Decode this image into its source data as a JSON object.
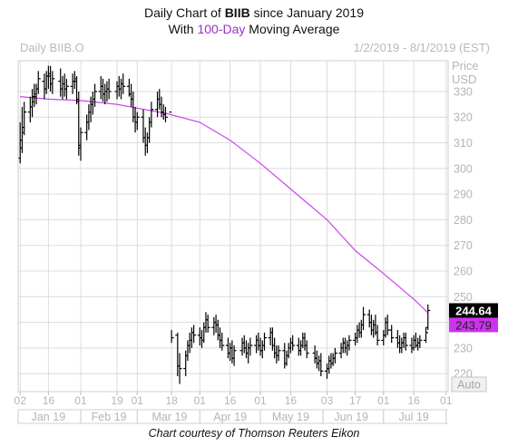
{
  "title": {
    "prefix": "Daily Chart of ",
    "ticker": "BIIB",
    "suffix": " since January 2019",
    "line2_pre": "With ",
    "line2_ma": "100-Day",
    "line2_post": " Moving Average"
  },
  "header": {
    "symbol": "Daily BIIB.O",
    "date_range": "1/2/2019 - 8/1/2019 (EST)"
  },
  "credit": "Chart courtesy of Thomson Reuters Eikon",
  "colors": {
    "price_bars": "#000000",
    "moving_average": "#cc44ee",
    "grid": "#dcdcdc",
    "axis_text": "#b5b5b5",
    "last_price_tag": "#000000",
    "ma_tag": "#cc33ee"
  },
  "chart_data": {
    "type": "line",
    "title": "Daily Chart of BIIB since January 2019",
    "subtitle": "With 100-Day Moving Average",
    "ylabel": "Price USD",
    "ylabel_lines": [
      "Price",
      "USD"
    ],
    "scale_button": "Auto",
    "ylim": [
      213,
      342
    ],
    "yticks": [
      220,
      230,
      240,
      250,
      260,
      270,
      280,
      290,
      300,
      310,
      320,
      330
    ],
    "xlim": [
      "2019-01-01",
      "2019-08-02"
    ],
    "grid": true,
    "x_ticks": [
      {
        "date": "2019-01-02",
        "label": "02"
      },
      {
        "date": "2019-01-16",
        "label": "16"
      },
      {
        "date": "2019-02-01",
        "label": "01"
      },
      {
        "date": "2019-02-19",
        "label": "19"
      },
      {
        "date": "2019-03-01",
        "label": "01"
      },
      {
        "date": "2019-03-18",
        "label": "18"
      },
      {
        "date": "2019-04-01",
        "label": "01"
      },
      {
        "date": "2019-04-16",
        "label": "16"
      },
      {
        "date": "2019-05-01",
        "label": "01"
      },
      {
        "date": "2019-05-16",
        "label": "16"
      },
      {
        "date": "2019-06-03",
        "label": "03"
      },
      {
        "date": "2019-06-17",
        "label": "17"
      },
      {
        "date": "2019-07-01",
        "label": "01"
      },
      {
        "date": "2019-07-16",
        "label": "16"
      },
      {
        "date": "2019-08-01",
        "label": "01"
      }
    ],
    "months": [
      {
        "label": "Jan 19",
        "center": "2019-01-16"
      },
      {
        "label": "Feb 19",
        "center": "2019-02-15"
      },
      {
        "label": "Mar 19",
        "center": "2019-03-17"
      },
      {
        "label": "Apr 19",
        "center": "2019-04-16"
      },
      {
        "label": "May 19",
        "center": "2019-05-16"
      },
      {
        "label": "Jun 19",
        "center": "2019-06-15"
      },
      {
        "label": "Jul 19",
        "center": "2019-07-16"
      }
    ],
    "price_series": {
      "type": "ohlc",
      "points": [
        [
          "2019-01-02",
          304,
          318,
          302,
          308
        ],
        [
          "2019-01-03",
          311,
          324,
          306,
          314
        ],
        [
          "2019-01-04",
          316,
          326,
          313,
          322
        ],
        [
          "2019-01-07",
          322,
          328,
          318,
          324
        ],
        [
          "2019-01-08",
          324,
          331,
          320,
          328
        ],
        [
          "2019-01-09",
          326,
          333,
          324,
          329
        ],
        [
          "2019-01-10",
          328,
          333,
          325,
          331
        ],
        [
          "2019-01-11",
          331,
          338,
          329,
          335
        ],
        [
          "2019-01-14",
          334,
          337,
          327,
          331
        ],
        [
          "2019-01-15",
          331,
          338,
          329,
          336
        ],
        [
          "2019-01-16",
          336,
          340,
          331,
          337
        ],
        [
          "2019-01-17",
          336,
          340,
          330,
          333
        ],
        [
          "2019-01-18",
          333,
          338,
          329,
          335
        ],
        [
          "2019-01-22",
          334,
          339,
          328,
          331
        ],
        [
          "2019-01-23",
          331,
          336,
          327,
          333
        ],
        [
          "2019-01-24",
          333,
          337,
          328,
          331
        ],
        [
          "2019-01-25",
          331,
          335,
          327,
          332
        ],
        [
          "2019-01-28",
          332,
          337,
          329,
          334
        ],
        [
          "2019-01-29",
          334,
          338,
          331,
          335
        ],
        [
          "2019-01-30",
          334,
          336,
          325,
          327
        ],
        [
          "2019-01-31",
          326,
          330,
          305,
          309
        ],
        [
          "2019-02-01",
          308,
          316,
          303,
          314
        ],
        [
          "2019-02-04",
          314,
          321,
          311,
          318
        ],
        [
          "2019-02-05",
          318,
          325,
          315,
          322
        ],
        [
          "2019-02-06",
          322,
          328,
          318,
          325
        ],
        [
          "2019-02-07",
          325,
          330,
          321,
          327
        ],
        [
          "2019-02-08",
          327,
          333,
          324,
          330
        ],
        [
          "2019-02-11",
          330,
          336,
          327,
          332
        ],
        [
          "2019-02-12",
          332,
          335,
          326,
          329
        ],
        [
          "2019-02-13",
          329,
          333,
          325,
          330
        ],
        [
          "2019-02-14",
          330,
          334,
          326,
          331
        ],
        [
          "2019-02-15",
          331,
          335,
          327,
          330
        ],
        [
          "2019-02-19",
          330,
          334,
          327,
          332
        ],
        [
          "2019-02-20",
          332,
          336,
          328,
          331
        ],
        [
          "2019-02-21",
          331,
          335,
          327,
          333
        ],
        [
          "2019-02-22",
          333,
          337,
          329,
          332
        ],
        [
          "2019-02-25",
          332,
          335,
          328,
          329
        ],
        [
          "2019-02-26",
          329,
          333,
          324,
          327
        ],
        [
          "2019-02-27",
          327,
          330,
          318,
          320
        ],
        [
          "2019-02-28",
          320,
          324,
          314,
          318
        ],
        [
          "2019-03-01",
          318,
          322,
          315,
          320
        ],
        [
          "2019-03-04",
          320,
          323,
          310,
          312
        ],
        [
          "2019-03-05",
          312,
          316,
          305,
          309
        ],
        [
          "2019-03-06",
          309,
          314,
          306,
          312
        ],
        [
          "2019-03-07",
          312,
          320,
          310,
          318
        ],
        [
          "2019-03-08",
          318,
          326,
          316,
          323
        ],
        [
          "2019-03-11",
          323,
          330,
          320,
          327
        ],
        [
          "2019-03-12",
          327,
          331,
          323,
          325
        ],
        [
          "2019-03-13",
          325,
          328,
          320,
          322
        ],
        [
          "2019-03-14",
          322,
          325,
          319,
          321
        ],
        [
          "2019-03-15",
          321,
          324,
          318,
          320
        ],
        [
          "2019-03-18",
          322,
          237,
          232,
          234
        ],
        [
          "2019-03-21",
          235,
          236,
          219,
          223
        ],
        [
          "2019-03-22",
          223,
          228,
          216,
          222
        ],
        [
          "2019-03-25",
          222,
          229,
          219,
          227
        ],
        [
          "2019-03-26",
          227,
          233,
          225,
          231
        ],
        [
          "2019-03-27",
          231,
          236,
          228,
          233
        ],
        [
          "2019-03-28",
          233,
          238,
          230,
          236
        ],
        [
          "2019-03-29",
          236,
          239,
          232,
          235
        ],
        [
          "2019-04-01",
          235,
          238,
          231,
          234
        ],
        [
          "2019-04-02",
          234,
          237,
          230,
          233
        ],
        [
          "2019-04-03",
          233,
          240,
          232,
          238
        ],
        [
          "2019-04-04",
          238,
          244,
          236,
          241
        ],
        [
          "2019-04-05",
          241,
          243,
          236,
          238
        ],
        [
          "2019-04-08",
          238,
          242,
          235,
          240
        ],
        [
          "2019-04-09",
          240,
          243,
          236,
          239
        ],
        [
          "2019-04-10",
          239,
          241,
          233,
          235
        ],
        [
          "2019-04-11",
          235,
          238,
          230,
          233
        ],
        [
          "2019-04-12",
          233,
          236,
          229,
          231
        ],
        [
          "2019-04-15",
          231,
          234,
          226,
          228
        ],
        [
          "2019-04-16",
          228,
          232,
          225,
          230
        ],
        [
          "2019-04-17",
          230,
          233,
          224,
          226
        ],
        [
          "2019-04-18",
          226,
          231,
          223,
          229
        ],
        [
          "2019-04-22",
          229,
          234,
          227,
          232
        ],
        [
          "2019-04-23",
          232,
          235,
          228,
          230
        ],
        [
          "2019-04-24",
          230,
          233,
          226,
          228
        ],
        [
          "2019-04-25",
          228,
          232,
          224,
          230
        ],
        [
          "2019-04-26",
          230,
          234,
          227,
          231
        ],
        [
          "2019-04-29",
          231,
          235,
          228,
          233
        ],
        [
          "2019-04-30",
          233,
          236,
          229,
          231
        ],
        [
          "2019-05-01",
          231,
          234,
          227,
          229
        ],
        [
          "2019-05-02",
          229,
          233,
          226,
          231
        ],
        [
          "2019-05-03",
          231,
          236,
          229,
          234
        ],
        [
          "2019-05-06",
          234,
          238,
          231,
          236
        ],
        [
          "2019-05-07",
          236,
          238,
          229,
          231
        ],
        [
          "2019-05-08",
          231,
          234,
          226,
          228
        ],
        [
          "2019-05-09",
          228,
          231,
          224,
          227
        ],
        [
          "2019-05-10",
          227,
          231,
          225,
          229
        ],
        [
          "2019-05-13",
          229,
          232,
          222,
          224
        ],
        [
          "2019-05-14",
          224,
          229,
          223,
          227
        ],
        [
          "2019-05-15",
          227,
          232,
          226,
          230
        ],
        [
          "2019-05-16",
          230,
          234,
          228,
          232
        ],
        [
          "2019-05-17",
          232,
          235,
          229,
          231
        ],
        [
          "2019-05-20",
          231,
          234,
          227,
          229
        ],
        [
          "2019-05-21",
          229,
          233,
          227,
          231
        ],
        [
          "2019-05-22",
          231,
          236,
          230,
          234
        ],
        [
          "2019-05-23",
          234,
          236,
          229,
          231
        ],
        [
          "2019-05-24",
          231,
          233,
          226,
          228
        ],
        [
          "2019-05-28",
          228,
          231,
          224,
          226
        ],
        [
          "2019-05-29",
          226,
          229,
          222,
          224
        ],
        [
          "2019-05-30",
          224,
          227,
          221,
          225
        ],
        [
          "2019-05-31",
          225,
          228,
          219,
          221
        ],
        [
          "2019-06-03",
          221,
          224,
          218,
          222
        ],
        [
          "2019-06-04",
          222,
          227,
          220,
          225
        ],
        [
          "2019-06-05",
          225,
          228,
          222,
          224
        ],
        [
          "2019-06-06",
          224,
          228,
          223,
          226
        ],
        [
          "2019-06-07",
          226,
          230,
          224,
          228
        ],
        [
          "2019-06-10",
          228,
          232,
          226,
          230
        ],
        [
          "2019-06-11",
          230,
          234,
          228,
          232
        ],
        [
          "2019-06-12",
          232,
          234,
          228,
          230
        ],
        [
          "2019-06-13",
          230,
          233,
          227,
          231
        ],
        [
          "2019-06-14",
          231,
          235,
          229,
          233
        ],
        [
          "2019-06-17",
          233,
          236,
          231,
          234
        ],
        [
          "2019-06-18",
          234,
          239,
          232,
          237
        ],
        [
          "2019-06-19",
          237,
          240,
          234,
          236
        ],
        [
          "2019-06-20",
          236,
          241,
          234,
          239
        ],
        [
          "2019-06-21",
          239,
          246,
          237,
          243
        ],
        [
          "2019-06-24",
          243,
          245,
          238,
          240
        ],
        [
          "2019-06-25",
          240,
          243,
          235,
          237
        ],
        [
          "2019-06-26",
          237,
          241,
          234,
          239
        ],
        [
          "2019-06-27",
          239,
          243,
          235,
          236
        ],
        [
          "2019-06-28",
          236,
          239,
          231,
          233
        ],
        [
          "2019-07-01",
          233,
          237,
          231,
          235
        ],
        [
          "2019-07-02",
          235,
          242,
          234,
          240
        ],
        [
          "2019-07-03",
          240,
          243,
          235,
          237
        ],
        [
          "2019-07-05",
          237,
          239,
          232,
          234
        ],
        [
          "2019-07-08",
          234,
          237,
          230,
          232
        ],
        [
          "2019-07-09",
          232,
          235,
          228,
          230
        ],
        [
          "2019-07-10",
          230,
          234,
          228,
          232
        ],
        [
          "2019-07-11",
          232,
          236,
          230,
          234
        ],
        [
          "2019-07-12",
          234,
          236,
          229,
          231
        ],
        [
          "2019-07-15",
          231,
          234,
          228,
          230
        ],
        [
          "2019-07-16",
          230,
          235,
          229,
          233
        ],
        [
          "2019-07-17",
          233,
          236,
          230,
          231
        ],
        [
          "2019-07-18",
          231,
          234,
          229,
          232
        ],
        [
          "2019-07-19",
          232,
          235,
          230,
          233
        ],
        [
          "2019-07-22",
          233,
          238,
          232,
          236
        ],
        [
          "2019-07-23",
          238,
          247,
          237,
          244.64
        ]
      ]
    },
    "moving_average": {
      "name": "100-Day",
      "points": [
        [
          "2019-01-02",
          328
        ],
        [
          "2019-01-16",
          327
        ],
        [
          "2019-02-01",
          326.5
        ],
        [
          "2019-02-19",
          325
        ],
        [
          "2019-03-01",
          323.5
        ],
        [
          "2019-03-15",
          321.5
        ],
        [
          "2019-04-01",
          318
        ],
        [
          "2019-04-16",
          311
        ],
        [
          "2019-05-01",
          302
        ],
        [
          "2019-05-16",
          292
        ],
        [
          "2019-06-03",
          280
        ],
        [
          "2019-06-17",
          268
        ],
        [
          "2019-07-01",
          259
        ],
        [
          "2019-07-16",
          249
        ],
        [
          "2019-07-23",
          243.79
        ]
      ]
    },
    "last_price": 244.64,
    "last_ma": 243.79
  }
}
